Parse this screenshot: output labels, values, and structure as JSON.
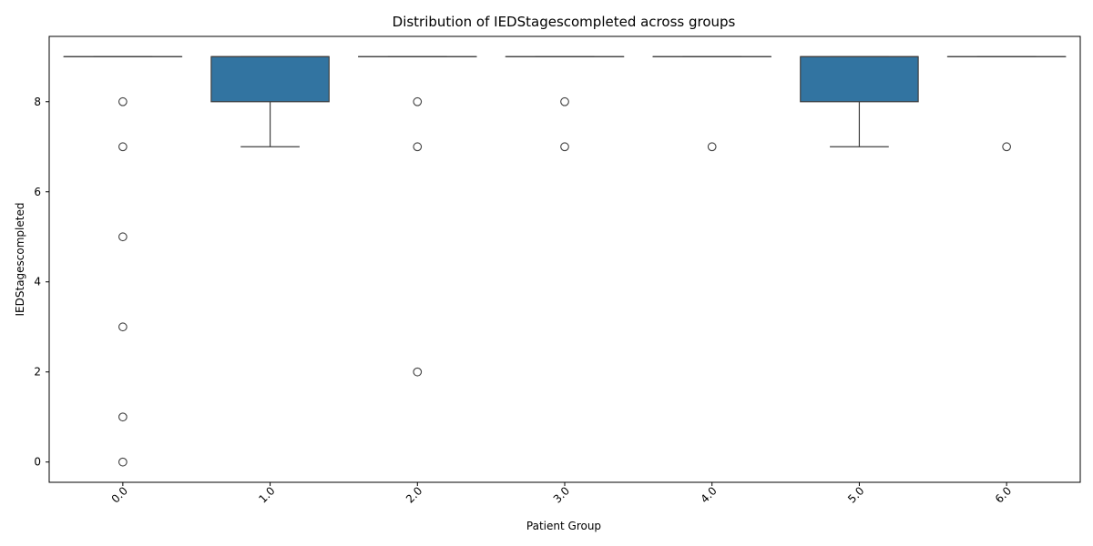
{
  "chart_data": {
    "type": "box",
    "title": "Distribution of IEDStagescompleted across groups",
    "xlabel": "Patient Group",
    "ylabel": "IEDStagescompleted",
    "categories": [
      "0.0",
      "1.0",
      "2.0",
      "3.0",
      "4.0",
      "5.0",
      "6.0"
    ],
    "yticks": [
      0,
      2,
      4,
      6,
      8
    ],
    "ylim": [
      -0.45,
      9.45
    ],
    "box_color": "#3274a1",
    "line_color": "#3f3f3f",
    "grid": false,
    "boxes": [
      {
        "group": "0.0",
        "q1": 9,
        "median": 9,
        "q3": 9,
        "whisker_low": 9,
        "whisker_high": 9,
        "outliers": [
          8,
          7,
          5,
          3,
          1,
          0
        ]
      },
      {
        "group": "1.0",
        "q1": 8,
        "median": 9,
        "q3": 9,
        "whisker_low": 7,
        "whisker_high": 9,
        "outliers": []
      },
      {
        "group": "2.0",
        "q1": 9,
        "median": 9,
        "q3": 9,
        "whisker_low": 9,
        "whisker_high": 9,
        "outliers": [
          8,
          7,
          2
        ]
      },
      {
        "group": "3.0",
        "q1": 9,
        "median": 9,
        "q3": 9,
        "whisker_low": 9,
        "whisker_high": 9,
        "outliers": [
          8,
          7
        ]
      },
      {
        "group": "4.0",
        "q1": 9,
        "median": 9,
        "q3": 9,
        "whisker_low": 9,
        "whisker_high": 9,
        "outliers": [
          7
        ]
      },
      {
        "group": "5.0",
        "q1": 8,
        "median": 9,
        "q3": 9,
        "whisker_low": 7,
        "whisker_high": 9,
        "outliers": []
      },
      {
        "group": "6.0",
        "q1": 9,
        "median": 9,
        "q3": 9,
        "whisker_low": 9,
        "whisker_high": 9,
        "outliers": [
          7
        ]
      }
    ]
  }
}
